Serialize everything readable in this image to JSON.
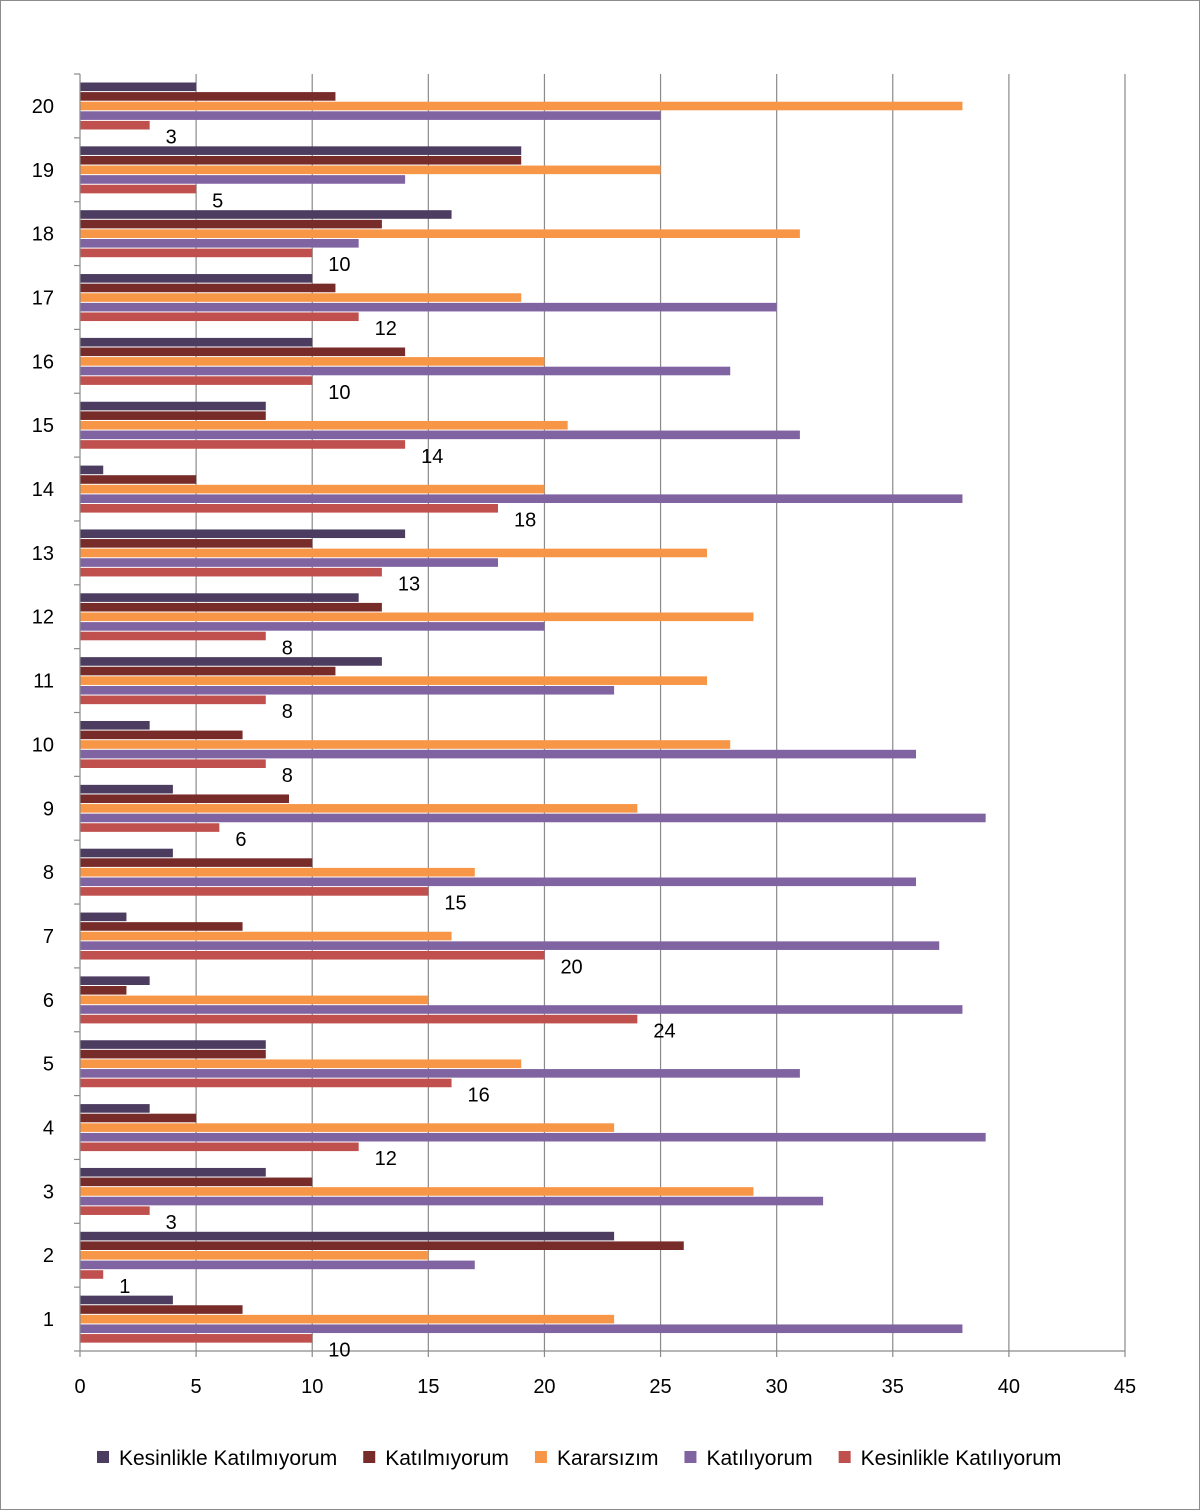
{
  "chart_data": {
    "type": "bar",
    "orientation": "horizontal",
    "categories": [
      "1",
      "2",
      "3",
      "4",
      "5",
      "6",
      "7",
      "8",
      "9",
      "10",
      "11",
      "12",
      "13",
      "14",
      "15",
      "16",
      "17",
      "18",
      "19",
      "20"
    ],
    "xlim": [
      0,
      45
    ],
    "x_ticks": [
      "0",
      "5",
      "10",
      "15",
      "20",
      "25",
      "30",
      "35",
      "40",
      "45"
    ],
    "grid": "vertical",
    "legend_position": "bottom",
    "series": [
      {
        "name": "Kesinlikle Katılmıyorum",
        "color": "#4b3c60",
        "values": [
          4,
          23,
          8,
          3,
          8,
          3,
          2,
          4,
          4,
          3,
          13,
          12,
          14,
          1,
          8,
          10,
          10,
          16,
          19,
          5
        ]
      },
      {
        "name": "Katılmıyorum",
        "color": "#772c2a",
        "values": [
          7,
          26,
          10,
          5,
          8,
          2,
          7,
          10,
          9,
          7,
          11,
          13,
          10,
          5,
          8,
          14,
          11,
          13,
          19,
          11
        ]
      },
      {
        "name": "Kararsızım",
        "color": "#f79646",
        "values": [
          23,
          15,
          29,
          23,
          19,
          15,
          16,
          17,
          24,
          28,
          27,
          29,
          27,
          20,
          21,
          20,
          19,
          31,
          25,
          38
        ]
      },
      {
        "name": "Katılıyorum",
        "color": "#8064a2",
        "values": [
          38,
          17,
          32,
          39,
          31,
          38,
          37,
          36,
          39,
          36,
          23,
          20,
          18,
          38,
          31,
          28,
          30,
          12,
          14,
          25
        ]
      },
      {
        "name": "Kesinlikle Katılıyorum",
        "color": "#c0504d",
        "values": [
          10,
          1,
          3,
          12,
          16,
          24,
          20,
          15,
          6,
          8,
          8,
          8,
          13,
          18,
          14,
          10,
          12,
          10,
          5,
          3
        ],
        "data_labels": [
          "10",
          "1",
          "3",
          "12",
          "16",
          "24",
          "20",
          "15",
          "6",
          "8",
          "8",
          "8",
          "13",
          "18",
          "14",
          "10",
          "12",
          "10",
          "5",
          "3"
        ]
      }
    ]
  }
}
